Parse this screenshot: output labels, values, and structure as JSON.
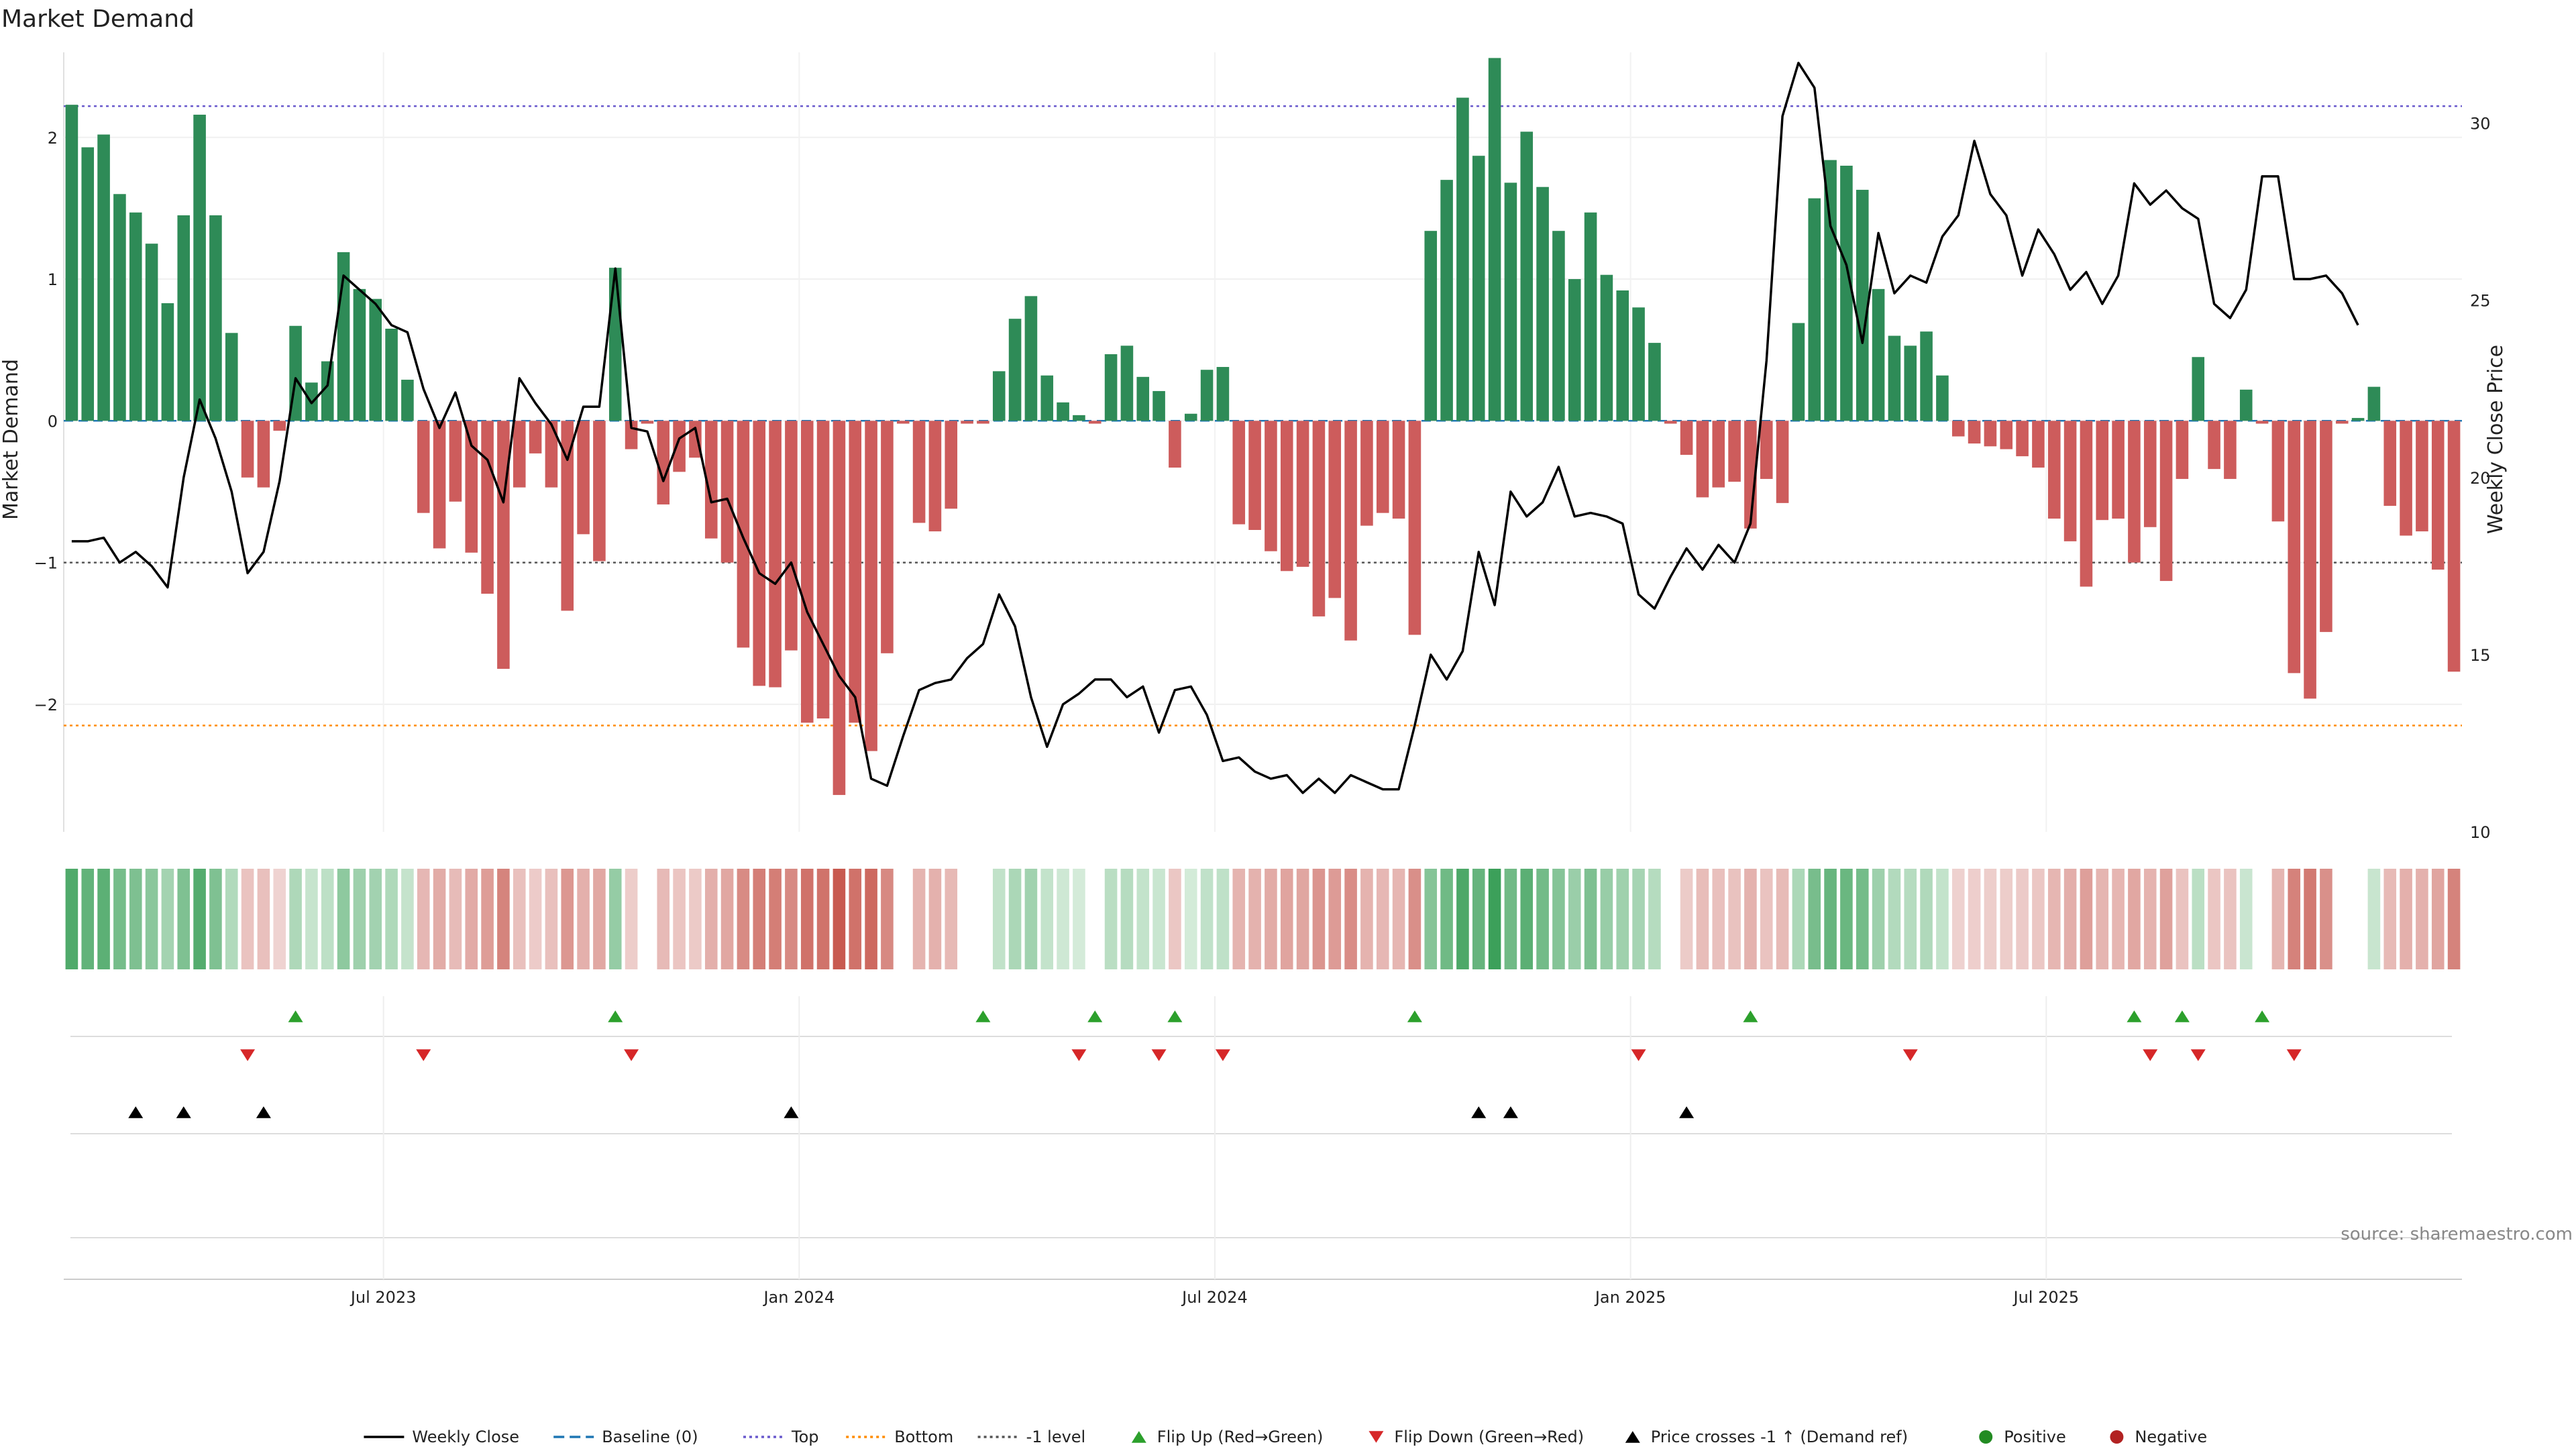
{
  "chart_data": {
    "type": "bar",
    "title": "Market Demand",
    "ylabel_left": "Market Demand",
    "ylabel_right": "Weekly Close Price",
    "source": "source: sharemaestro.com",
    "ylim_left": [
      -2.9,
      2.6
    ],
    "ylim_right": [
      10,
      32
    ],
    "yticks_left": [
      {
        "value": 2,
        "label": "2"
      },
      {
        "value": 1,
        "label": "1"
      },
      {
        "value": 0,
        "label": "0"
      },
      {
        "value": -1,
        "label": "−1"
      },
      {
        "value": -2,
        "label": "−2"
      }
    ],
    "yticks_right": [
      {
        "value": 30,
        "label": "30"
      },
      {
        "value": 25,
        "label": "25"
      },
      {
        "value": 20,
        "label": "20"
      },
      {
        "value": 15,
        "label": "15"
      },
      {
        "value": 10,
        "label": "10"
      }
    ],
    "xticks": [
      {
        "week": 20,
        "label": "Jul 2023"
      },
      {
        "week": 46,
        "label": "Jan 2024"
      },
      {
        "week": 72,
        "label": "Jul 2024"
      },
      {
        "week": 98,
        "label": "Jan 2025"
      },
      {
        "week": 124,
        "label": "Jul 2025"
      }
    ],
    "ref_lines": {
      "baseline": 0,
      "top": 2.22,
      "bottom": -2.15,
      "minus_one": -1
    },
    "colors": {
      "positive": "#2e8b57",
      "negative": "#cd5c5c",
      "price": "#000000",
      "baseline": "#1f77b4",
      "top": "#6a5acd",
      "bottom": "#ff8c00",
      "minus_one": "#555555",
      "flip_up": "#2ca02c",
      "flip_down": "#d62728",
      "cross": "#000000",
      "pos_dot": "#228b22",
      "neg_dot": "#b22222"
    },
    "demand": [
      2.23,
      1.93,
      2.02,
      1.6,
      1.47,
      1.25,
      0.83,
      1.45,
      2.16,
      1.45,
      0.62,
      -0.4,
      -0.47,
      -0.07,
      0.67,
      0.27,
      0.42,
      1.19,
      0.93,
      0.86,
      0.65,
      0.29,
      -0.65,
      -0.9,
      -0.57,
      -0.93,
      -1.22,
      -1.75,
      -0.47,
      -0.23,
      -0.47,
      -1.34,
      -0.8,
      -0.99,
      1.08,
      -0.2,
      -0.02,
      -0.59,
      -0.36,
      -0.26,
      -0.83,
      -1.0,
      -1.6,
      -1.87,
      -1.88,
      -1.62,
      -2.13,
      -2.1,
      -2.64,
      -2.13,
      -2.33,
      -1.64,
      -0.02,
      -0.72,
      -0.78,
      -0.62,
      -0.02,
      -0.02,
      0.35,
      0.72,
      0.88,
      0.32,
      0.13,
      0.04,
      -0.02,
      0.47,
      0.53,
      0.31,
      0.21,
      -0.33,
      0.05,
      0.36,
      0.38,
      -0.73,
      -0.77,
      -0.92,
      -1.06,
      -1.03,
      -1.38,
      -1.25,
      -1.55,
      -0.74,
      -0.65,
      -0.69,
      -1.51,
      1.34,
      1.7,
      2.28,
      1.87,
      2.56,
      1.68,
      2.04,
      1.65,
      1.34,
      1.0,
      1.47,
      1.03,
      0.92,
      0.8,
      0.55,
      -0.02,
      -0.24,
      -0.54,
      -0.47,
      -0.43,
      -0.76,
      -0.41,
      -0.58,
      0.69,
      1.57,
      1.84,
      1.8,
      1.63,
      0.93,
      0.6,
      0.53,
      0.63,
      0.32,
      -0.11,
      -0.16,
      -0.18,
      -0.2,
      -0.25,
      -0.33,
      -0.69,
      -0.85,
      -1.17,
      -0.7,
      -0.69,
      -1.0,
      -0.75,
      -1.13,
      -0.41,
      0.45,
      -0.34,
      -0.41,
      0.22,
      -0.02,
      -0.71,
      -1.78,
      -1.96,
      -1.49,
      -0.02,
      0.02,
      0.24,
      -0.6,
      -0.81,
      -0.78,
      -1.05,
      -1.77
    ],
    "price": [
      18.2,
      18.2,
      18.3,
      17.6,
      17.9,
      17.5,
      16.9,
      20.0,
      22.2,
      21.1,
      19.6,
      17.3,
      17.9,
      19.9,
      22.8,
      22.1,
      22.6,
      25.7,
      25.3,
      24.9,
      24.3,
      24.1,
      22.5,
      21.4,
      22.4,
      20.9,
      20.5,
      19.3,
      22.8,
      22.1,
      21.5,
      20.5,
      22.0,
      22.0,
      25.9,
      21.4,
      21.3,
      19.9,
      21.1,
      21.4,
      19.3,
      19.4,
      18.3,
      17.3,
      17.0,
      17.6,
      16.2,
      15.3,
      14.4,
      13.8,
      11.5,
      11.3,
      12.7,
      14.0,
      14.2,
      14.3,
      14.9,
      15.3,
      16.7,
      15.8,
      13.8,
      12.4,
      13.6,
      13.9,
      14.3,
      14.3,
      13.8,
      14.1,
      12.8,
      14.0,
      14.1,
      13.3,
      12.0,
      12.1,
      11.7,
      11.5,
      11.6,
      11.1,
      11.5,
      11.1,
      11.6,
      11.4,
      11.2,
      11.2,
      13.0,
      15.0,
      14.3,
      15.1,
      17.9,
      16.4,
      19.6,
      18.9,
      19.3,
      20.3,
      18.9,
      19.0,
      18.9,
      18.7,
      16.7,
      16.3,
      17.2,
      18.0,
      17.4,
      18.1,
      17.6,
      18.7,
      23.3,
      30.2,
      31.7,
      31.0,
      27.1,
      26.0,
      23.8,
      26.9,
      25.2,
      25.7,
      25.5,
      26.8,
      27.4,
      29.5,
      28.0,
      27.4,
      25.7,
      27.0,
      26.3,
      25.3,
      25.8,
      24.9,
      25.7,
      28.3,
      27.7,
      28.1,
      27.6,
      27.3,
      24.9,
      24.5,
      25.3,
      28.5,
      28.5,
      25.6,
      25.6,
      25.7,
      25.2,
      24.3
    ],
    "flip_up_weeks": [
      14,
      34,
      57,
      64,
      69,
      84,
      105,
      129,
      132,
      137
    ],
    "flip_down_weeks": [
      11,
      22,
      35,
      63,
      68,
      72,
      98,
      115,
      130,
      133,
      139
    ],
    "price_cross_weeks": [
      4,
      7,
      12,
      45,
      88,
      90,
      101
    ],
    "legend": [
      "Weekly Close",
      "Baseline (0)",
      "Top",
      "Bottom",
      "-1 level",
      "Flip Up (Red→Green)",
      "Flip Down (Green→Red)",
      "Price crosses -1 ↑ (Demand ref)",
      "Positive",
      "Negative"
    ]
  }
}
